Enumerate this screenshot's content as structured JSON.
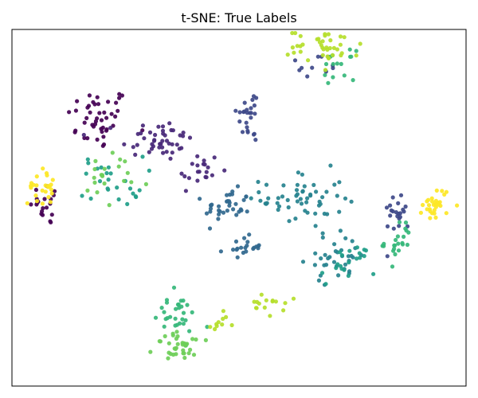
{
  "chart_data": {
    "type": "scatter",
    "title": "t-SNE: True Labels",
    "xlabel": "",
    "ylabel": "",
    "axes_ticks": "hidden",
    "grid": false,
    "legend": "none",
    "colormap": "viridis",
    "xlim": [
      -100,
      100
    ],
    "ylim": [
      -100,
      100
    ],
    "clusters": [
      {
        "label": 0,
        "color": "#440154",
        "center": [
          -62,
          50
        ],
        "spread": [
          7,
          9
        ],
        "count": 45
      },
      {
        "label": 0,
        "color": "#440154",
        "center": [
          -84,
          2
        ],
        "spread": [
          4,
          6
        ],
        "count": 20
      },
      {
        "label": 1,
        "color": "#482878",
        "center": [
          -36,
          38
        ],
        "spread": [
          8,
          6
        ],
        "count": 45
      },
      {
        "label": 1,
        "color": "#482878",
        "center": [
          -18,
          20
        ],
        "spread": [
          5,
          6
        ],
        "count": 20
      },
      {
        "label": 2,
        "color": "#3e4989",
        "center": [
          5,
          52
        ],
        "spread": [
          3,
          8
        ],
        "count": 25
      },
      {
        "label": 2,
        "color": "#3e4989",
        "center": [
          33,
          79
        ],
        "spread": [
          6,
          4
        ],
        "count": 12
      },
      {
        "label": 2,
        "color": "#3e4989",
        "center": [
          70,
          -2
        ],
        "spread": [
          3,
          6
        ],
        "count": 22
      },
      {
        "label": 3,
        "color": "#31688e",
        "center": [
          -5,
          0
        ],
        "spread": [
          5,
          5
        ],
        "count": 35
      },
      {
        "label": 3,
        "color": "#31688e",
        "center": [
          2,
          -22
        ],
        "spread": [
          4,
          3
        ],
        "count": 20
      },
      {
        "label": 4,
        "color": "#26828e",
        "center": [
          28,
          5
        ],
        "spread": [
          9,
          8
        ],
        "count": 55
      },
      {
        "label": 4,
        "color": "#26828e",
        "center": [
          43,
          -27
        ],
        "spread": [
          7,
          7
        ],
        "count": 35
      },
      {
        "label": 5,
        "color": "#1f9e89",
        "center": [
          -56,
          15
        ],
        "spread": [
          7,
          7
        ],
        "count": 25
      },
      {
        "label": 5,
        "color": "#1f9e89",
        "center": [
          48,
          -32
        ],
        "spread": [
          6,
          6
        ],
        "count": 20
      },
      {
        "label": 6,
        "color": "#35b779",
        "center": [
          -28,
          -60
        ],
        "spread": [
          5,
          6
        ],
        "count": 30
      },
      {
        "label": 6,
        "color": "#35b779",
        "center": [
          70,
          -19
        ],
        "spread": [
          3,
          6
        ],
        "count": 22
      },
      {
        "label": 6,
        "color": "#35b779",
        "center": [
          43,
          80
        ],
        "spread": [
          4,
          4
        ],
        "count": 15
      },
      {
        "label": 7,
        "color": "#6ece58",
        "center": [
          -25,
          -78
        ],
        "spread": [
          6,
          4
        ],
        "count": 35
      },
      {
        "label": 7,
        "color": "#6ece58",
        "center": [
          -55,
          15
        ],
        "spread": [
          8,
          8
        ],
        "count": 20
      },
      {
        "label": 8,
        "color": "#b5de2b",
        "center": [
          38,
          91
        ],
        "spread": [
          8,
          5
        ],
        "count": 40
      },
      {
        "label": 8,
        "color": "#b5de2b",
        "center": [
          12,
          -55
        ],
        "spread": [
          4,
          3
        ],
        "count": 15
      },
      {
        "label": 8,
        "color": "#b5de2b",
        "center": [
          -9,
          -64
        ],
        "spread": [
          3,
          3
        ],
        "count": 10
      },
      {
        "label": 9,
        "color": "#fde725",
        "center": [
          -87,
          12
        ],
        "spread": [
          3,
          5
        ],
        "count": 25
      },
      {
        "label": 9,
        "color": "#fde725",
        "center": [
          87,
          2
        ],
        "spread": [
          3,
          5
        ],
        "count": 30
      }
    ]
  }
}
